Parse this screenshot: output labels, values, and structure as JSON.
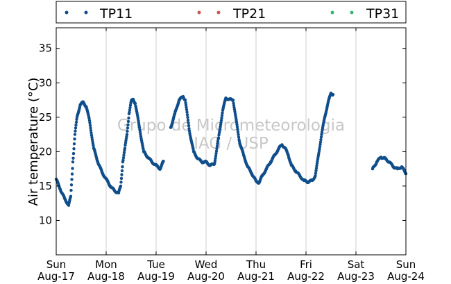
{
  "chart_data": {
    "type": "scatter",
    "ylabel": "Air temperature (°C)",
    "xlim": [
      "2015-08-17 00:00",
      "2015-08-24 00:00"
    ],
    "ylim": [
      5,
      38
    ],
    "yticks": [
      10,
      15,
      20,
      25,
      30,
      35
    ],
    "xticks": [
      {
        "at": "2015-08-17 00:00",
        "day": "Sun",
        "date": "Aug-17"
      },
      {
        "at": "2015-08-18 00:00",
        "day": "Mon",
        "date": "Aug-18"
      },
      {
        "at": "2015-08-19 00:00",
        "day": "Tue",
        "date": "Aug-19"
      },
      {
        "at": "2015-08-20 00:00",
        "day": "Wed",
        "date": "Aug-20"
      },
      {
        "at": "2015-08-21 00:00",
        "day": "Thu",
        "date": "Aug-21"
      },
      {
        "at": "2015-08-22 00:00",
        "day": "Fri",
        "date": "Aug-22"
      },
      {
        "at": "2015-08-23 00:00",
        "day": "Sat",
        "date": "Aug-23"
      },
      {
        "at": "2015-08-24 00:00",
        "day": "Sun",
        "date": "Aug-24"
      }
    ],
    "grid": "vertical",
    "legend_position": "top",
    "watermark": [
      "Grupo de Micrometeorologia",
      "IAG / USP"
    ],
    "series": [
      {
        "name": "TP11",
        "color": "#104e8b",
        "points": [
          [
            "2015-08-17 00:00",
            16.0
          ],
          [
            "2015-08-17 02:00",
            14.5
          ],
          [
            "2015-08-17 04:00",
            13.2
          ],
          [
            "2015-08-17 06:00",
            12.2
          ],
          [
            "2015-08-17 07:00",
            13.5
          ],
          [
            "2015-08-17 08:00",
            18.5
          ],
          [
            "2015-08-17 09:00",
            22.5
          ],
          [
            "2015-08-17 10:00",
            25.0
          ],
          [
            "2015-08-17 11:30",
            26.8
          ],
          [
            "2015-08-17 13:00",
            27.2
          ],
          [
            "2015-08-17 14:30",
            26.5
          ],
          [
            "2015-08-17 16:00",
            24.5
          ],
          [
            "2015-08-17 18:00",
            20.5
          ],
          [
            "2015-08-17 20:00",
            18.5
          ],
          [
            "2015-08-17 22:00",
            17.0
          ],
          [
            "2015-08-18 00:00",
            16.0
          ],
          [
            "2015-08-18 02:00",
            15.0
          ],
          [
            "2015-08-18 04:00",
            14.3
          ],
          [
            "2015-08-18 06:00",
            14.0
          ],
          [
            "2015-08-18 07:00",
            15.0
          ],
          [
            "2015-08-18 08:00",
            18.5
          ],
          [
            "2015-08-18 09:00",
            20.5
          ],
          [
            "2015-08-18 10:00",
            22.5
          ],
          [
            "2015-08-18 11:00",
            25.5
          ],
          [
            "2015-08-18 12:00",
            27.3
          ],
          [
            "2015-08-18 13:00",
            27.6
          ],
          [
            "2015-08-18 14:00",
            27.0
          ],
          [
            "2015-08-18 16:00",
            23.5
          ],
          [
            "2015-08-18 18:00",
            20.0
          ],
          [
            "2015-08-18 20:00",
            19.2
          ],
          [
            "2015-08-18 22:00",
            18.5
          ],
          [
            "2015-08-19 00:00",
            18.0
          ],
          [
            "2015-08-19 02:00",
            17.5
          ],
          [
            "2015-08-19 03:30",
            18.6
          ],
          [
            "2015-08-19 07:00",
            23.5
          ],
          [
            "2015-08-19 09:00",
            25.5
          ],
          [
            "2015-08-19 11:00",
            27.5
          ],
          [
            "2015-08-19 13:00",
            28.0
          ],
          [
            "2015-08-19 14:00",
            27.5
          ],
          [
            "2015-08-19 16:00",
            23.0
          ],
          [
            "2015-08-19 18:00",
            20.0
          ],
          [
            "2015-08-19 20:00",
            19.0
          ],
          [
            "2015-08-19 22:00",
            18.5
          ],
          [
            "2015-08-20 00:00",
            18.5
          ],
          [
            "2015-08-20 02:00",
            18.0
          ],
          [
            "2015-08-20 04:00",
            18.2
          ],
          [
            "2015-08-20 06:00",
            22.0
          ],
          [
            "2015-08-20 08:00",
            26.0
          ],
          [
            "2015-08-20 09:30",
            27.8
          ],
          [
            "2015-08-20 11:00",
            27.6
          ],
          [
            "2015-08-20 13:00",
            27.5
          ],
          [
            "2015-08-20 14:00",
            25.5
          ],
          [
            "2015-08-20 16:00",
            21.5
          ],
          [
            "2015-08-20 18:00",
            19.5
          ],
          [
            "2015-08-20 20:00",
            17.8
          ],
          [
            "2015-08-20 22:00",
            16.8
          ],
          [
            "2015-08-21 00:00",
            15.7
          ],
          [
            "2015-08-21 01:30",
            15.5
          ],
          [
            "2015-08-21 03:00",
            16.5
          ],
          [
            "2015-08-21 05:00",
            17.5
          ],
          [
            "2015-08-21 07:00",
            18.5
          ],
          [
            "2015-08-21 09:00",
            19.5
          ],
          [
            "2015-08-21 11:00",
            20.5
          ],
          [
            "2015-08-21 12:30",
            21.0
          ],
          [
            "2015-08-21 14:00",
            20.5
          ],
          [
            "2015-08-21 15:30",
            19.5
          ],
          [
            "2015-08-21 17:00",
            18.0
          ],
          [
            "2015-08-21 19:00",
            17.2
          ],
          [
            "2015-08-21 21:00",
            16.5
          ],
          [
            "2015-08-21 23:00",
            15.8
          ],
          [
            "2015-08-22 01:00",
            15.6
          ],
          [
            "2015-08-22 03:00",
            15.8
          ],
          [
            "2015-08-22 04:30",
            16.5
          ],
          [
            "2015-08-22 06:00",
            19.5
          ],
          [
            "2015-08-22 07:30",
            22.5
          ],
          [
            "2015-08-22 09:00",
            25.0
          ],
          [
            "2015-08-22 10:30",
            27.0
          ],
          [
            "2015-08-22 12:00",
            28.5
          ],
          [
            "2015-08-22 13:00",
            28.3
          ],
          [
            "2015-08-23 08:00",
            17.5
          ],
          [
            "2015-08-23 10:00",
            18.5
          ],
          [
            "2015-08-23 12:00",
            19.2
          ],
          [
            "2015-08-23 14:00",
            19.0
          ],
          [
            "2015-08-23 16:00",
            18.5
          ],
          [
            "2015-08-23 18:00",
            17.8
          ],
          [
            "2015-08-23 20:00",
            17.5
          ],
          [
            "2015-08-23 22:00",
            17.8
          ],
          [
            "2015-08-24 00:00",
            16.8
          ]
        ]
      },
      {
        "name": "TP21",
        "color": "#cd5555",
        "points": []
      },
      {
        "name": "TP31",
        "color": "#3cb371",
        "points": []
      }
    ]
  }
}
